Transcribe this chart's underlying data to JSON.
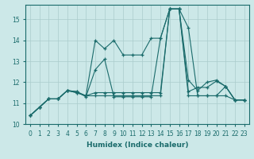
{
  "xlabel": "Humidex (Indice chaleur)",
  "bg_color": "#cce8e8",
  "grid_color": "#aacccc",
  "line_color": "#1a6b6b",
  "xlim_min": -0.5,
  "xlim_max": 23.5,
  "ylim_min": 10.0,
  "ylim_max": 15.7,
  "yticks": [
    10,
    11,
    12,
    13,
    14,
    15
  ],
  "xticks": [
    0,
    1,
    2,
    3,
    4,
    5,
    6,
    7,
    8,
    9,
    10,
    11,
    12,
    13,
    14,
    15,
    16,
    17,
    18,
    19,
    20,
    21,
    22,
    23
  ],
  "series": [
    [
      10.4,
      10.8,
      11.2,
      11.2,
      11.6,
      11.55,
      11.3,
      12.6,
      13.1,
      11.3,
      11.3,
      11.3,
      11.3,
      11.3,
      14.1,
      15.5,
      15.5,
      14.6,
      11.35,
      11.35,
      11.35,
      11.8,
      11.15,
      11.15
    ],
    [
      10.4,
      10.8,
      11.2,
      11.2,
      11.6,
      11.55,
      11.35,
      14.0,
      13.6,
      14.0,
      13.3,
      13.3,
      13.3,
      14.1,
      14.1,
      15.5,
      15.5,
      11.55,
      11.75,
      11.75,
      12.05,
      11.8,
      11.15,
      11.15
    ],
    [
      10.4,
      10.8,
      11.2,
      11.2,
      11.6,
      11.5,
      11.35,
      11.5,
      11.5,
      11.5,
      11.5,
      11.5,
      11.5,
      11.5,
      11.5,
      15.5,
      15.5,
      12.1,
      11.6,
      12.0,
      12.1,
      11.8,
      11.15,
      11.15
    ],
    [
      10.4,
      10.8,
      11.2,
      11.2,
      11.6,
      11.5,
      11.35,
      11.35,
      11.35,
      11.35,
      11.35,
      11.35,
      11.35,
      11.35,
      11.35,
      15.5,
      15.5,
      11.35,
      11.35,
      11.35,
      11.35,
      11.35,
      11.15,
      11.15
    ]
  ],
  "xlabel_fontsize": 6.5,
  "tick_fontsize": 5.5,
  "marker_size": 3.5,
  "line_width": 0.8
}
